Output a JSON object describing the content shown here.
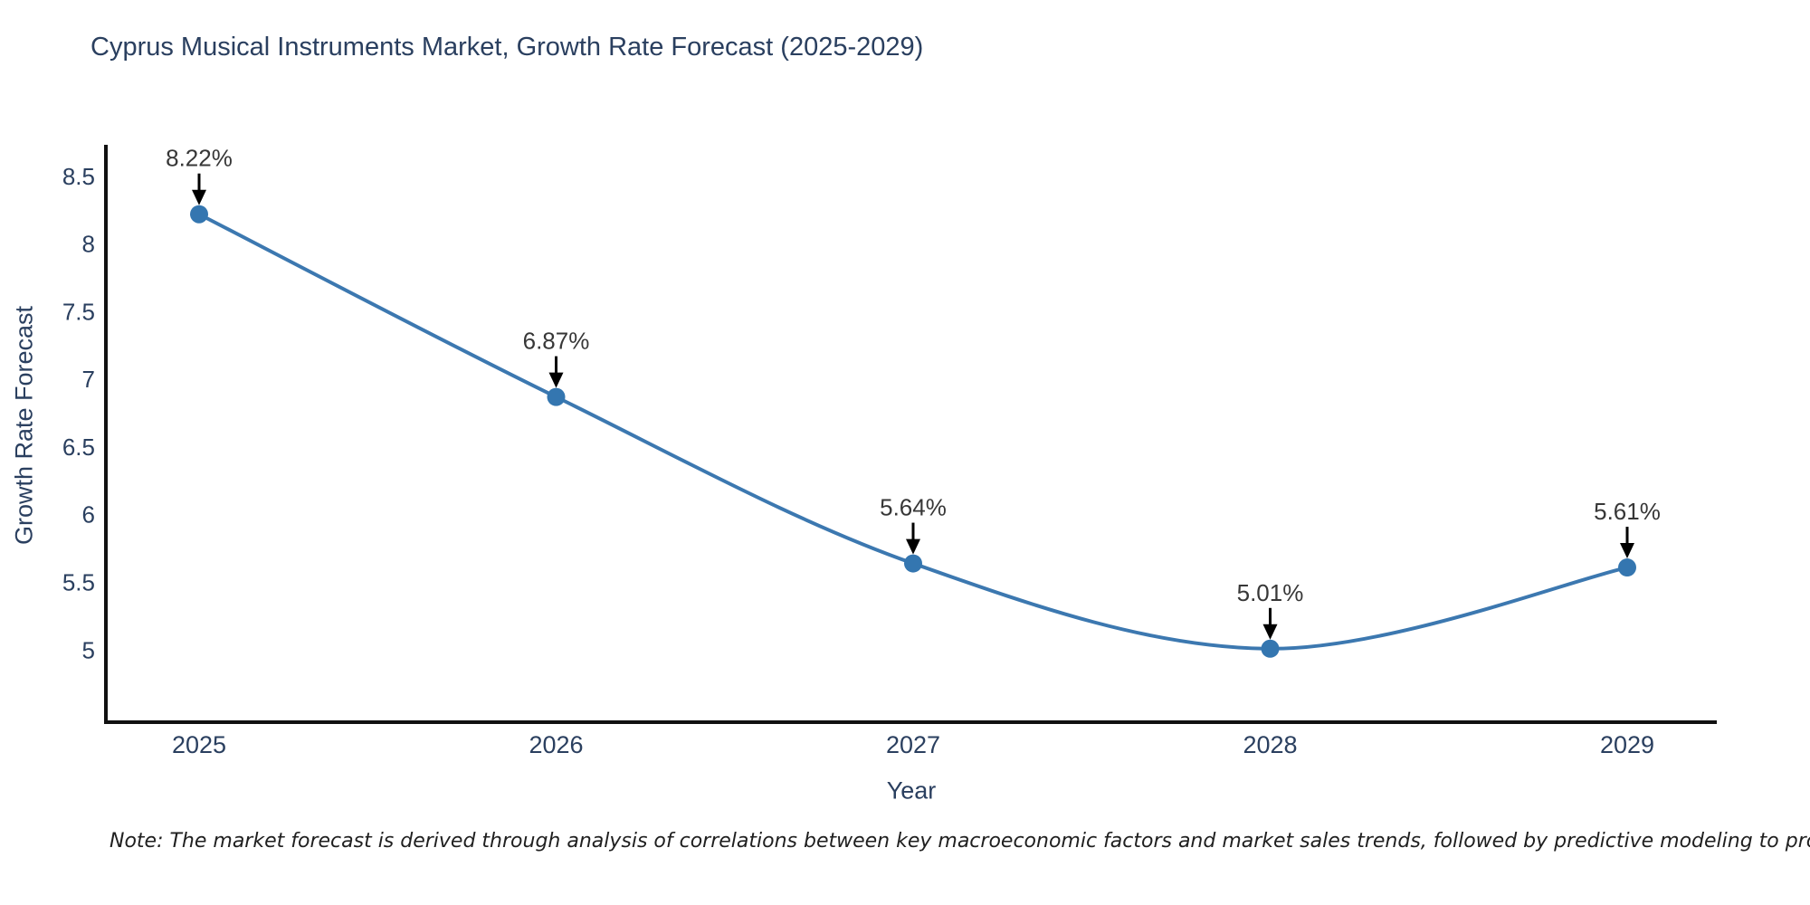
{
  "page": {
    "title": "Cyprus Musical Instruments Market, Growth Rate Forecast (2025-2029)",
    "note": "Note: The market forecast is derived through analysis of correlations between key macroeconomic factors and market sales trends, followed by predictive modeling to project future sales"
  },
  "chart_data": {
    "type": "line",
    "title": "Cyprus Musical Instruments Market, Growth Rate Forecast (2025-2029)",
    "xlabel": "Year",
    "ylabel": "Growth Rate Forecast",
    "categories": [
      "2025",
      "2026",
      "2027",
      "2028",
      "2029"
    ],
    "series": [
      {
        "name": "Growth Rate Forecast",
        "values": [
          8.22,
          6.87,
          5.64,
          5.01,
          5.61
        ]
      }
    ],
    "point_labels": [
      "8.22%",
      "6.87%",
      "5.64%",
      "5.01%",
      "5.61%"
    ],
    "yticks": [
      5,
      5.5,
      6,
      6.5,
      7,
      7.5,
      8,
      8.5
    ],
    "ylim": [
      4.467,
      8.733
    ],
    "grid": false,
    "legend": "none",
    "line_shape": "spline",
    "marker": "circle",
    "annotation_style": "value-above-with-down-arrow",
    "colors": {
      "line": "#3c78b0",
      "marker": "#3476b0",
      "axis": "#111111",
      "tick_text": "#2a3f5f",
      "annotation_text": "#373737",
      "arrow": "#000000",
      "title_text": "#2a3f5f",
      "background": "#ffffff"
    }
  }
}
